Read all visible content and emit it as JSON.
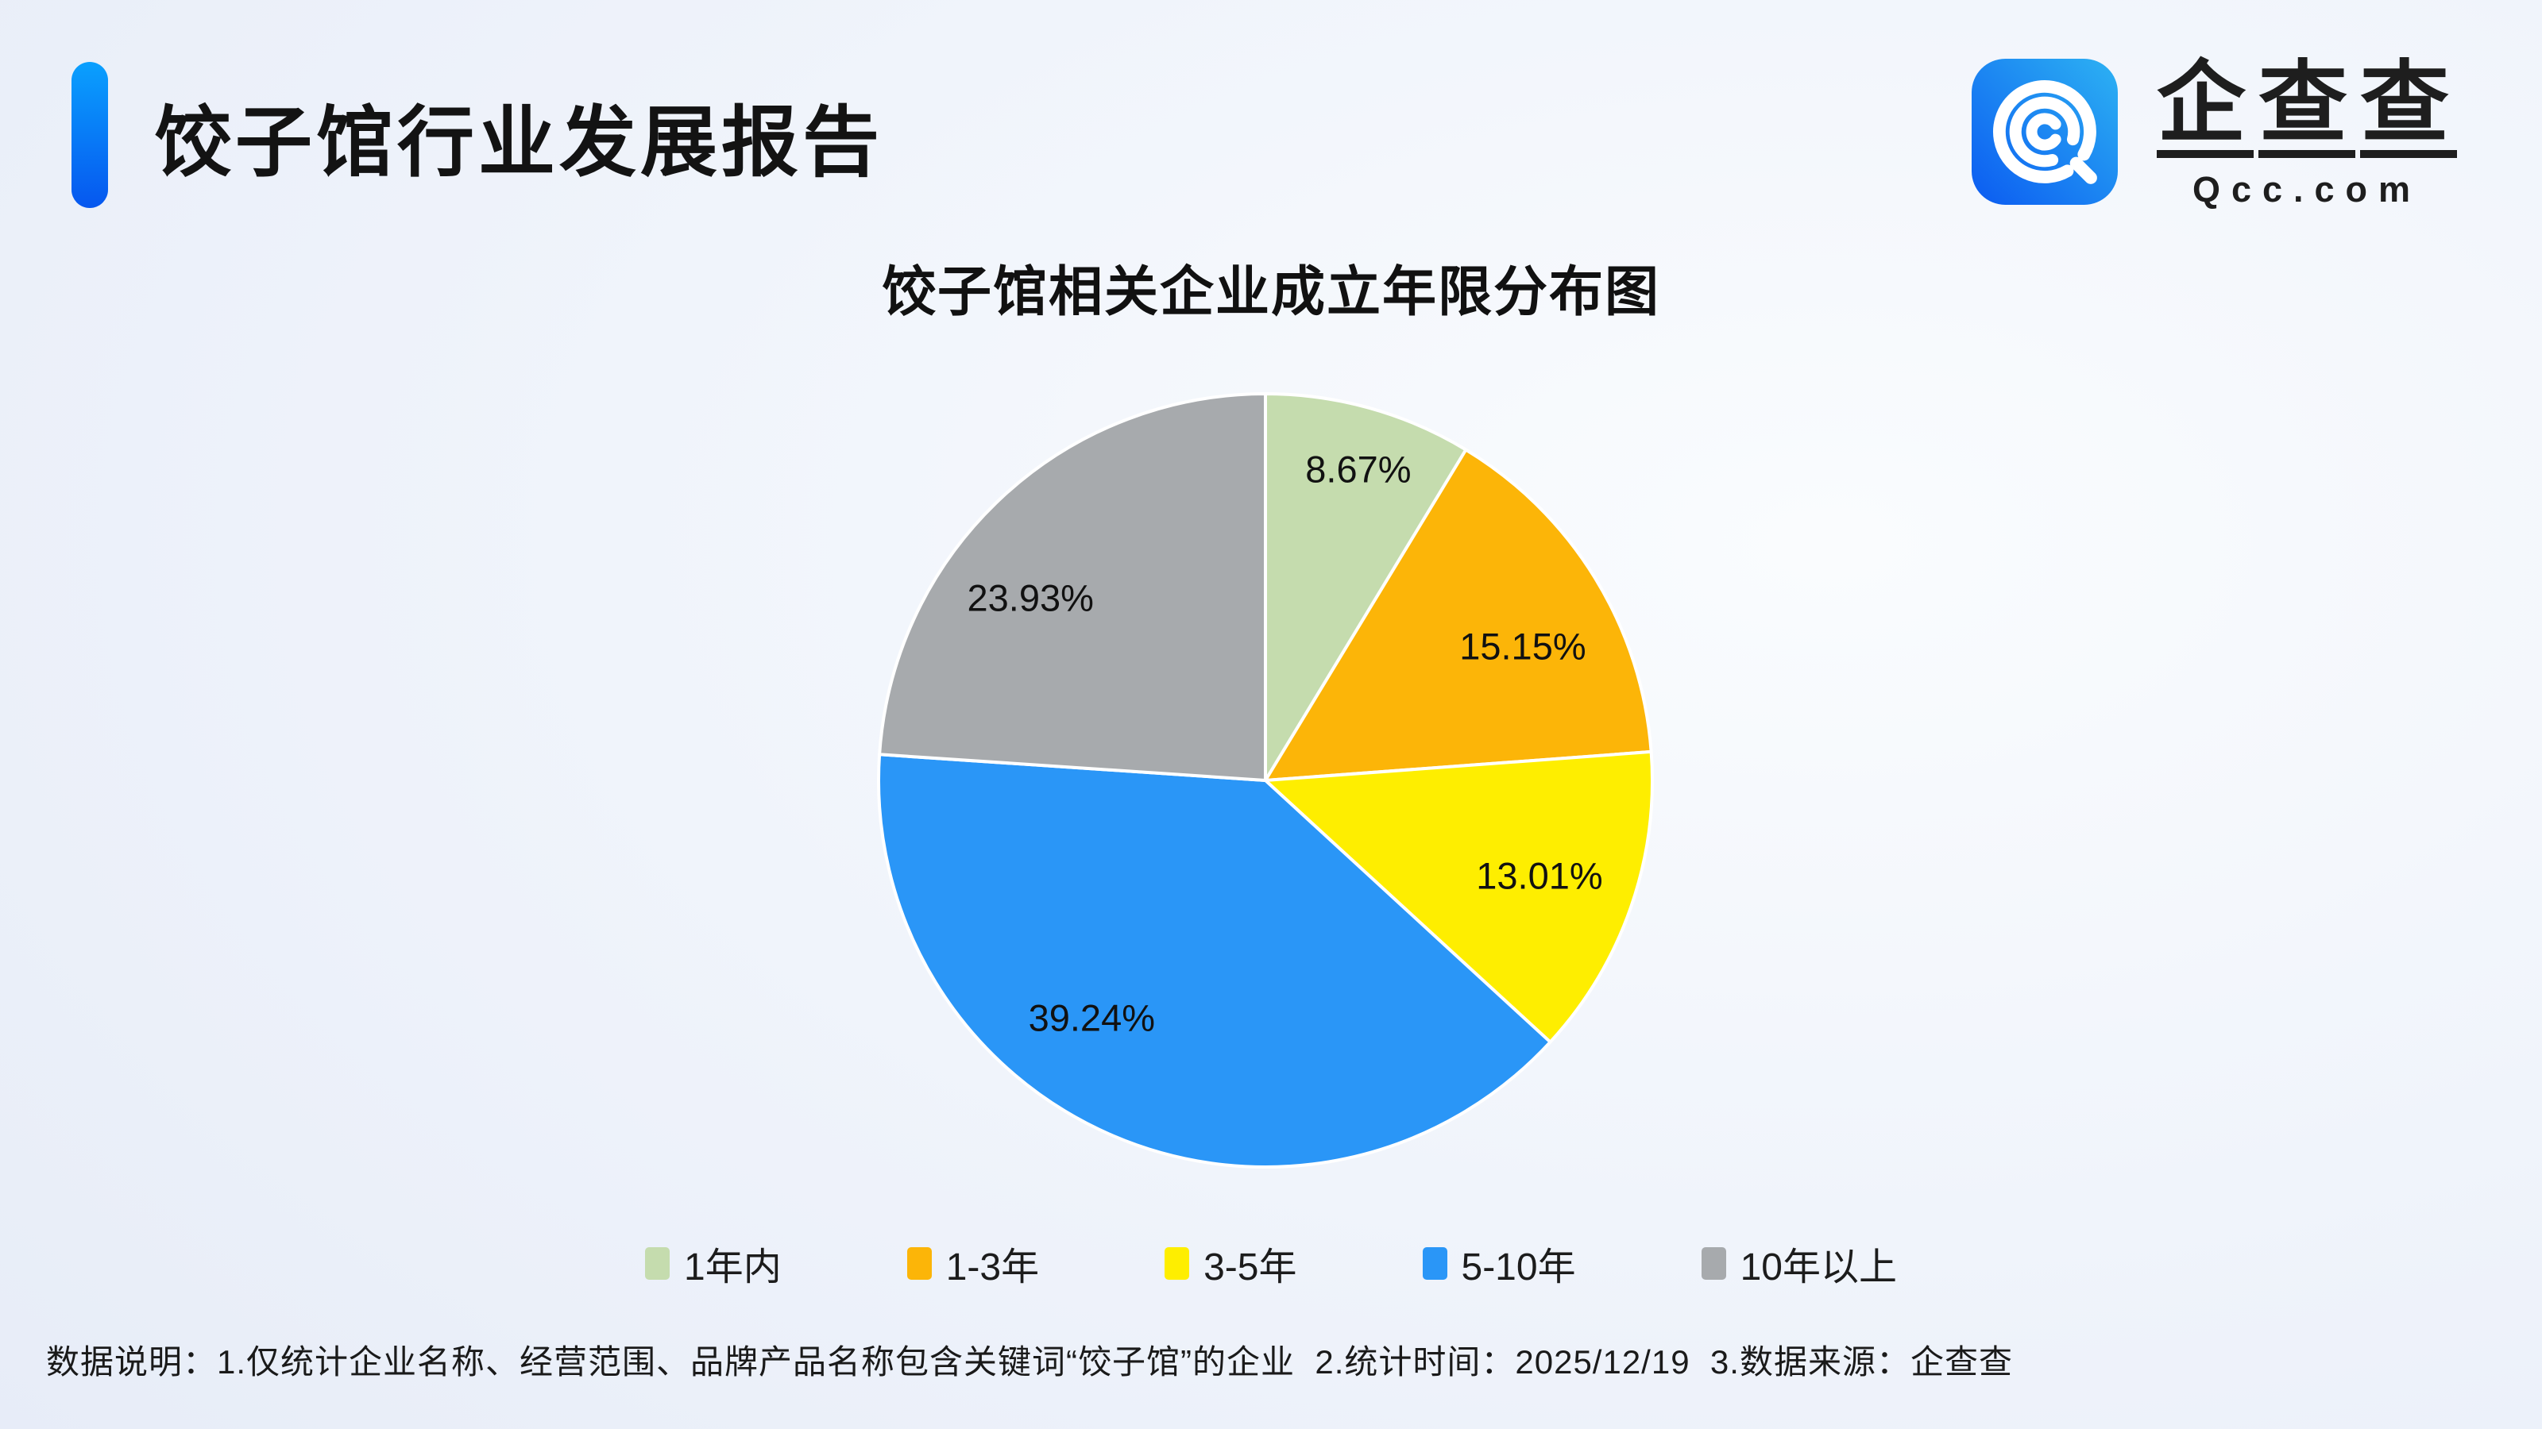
{
  "header": {
    "report_title": "饺子馆行业发展报告",
    "brand": {
      "name": "企查查",
      "domain": "Qcc.com"
    }
  },
  "chart_data": {
    "type": "pie",
    "title": "饺子馆相关企业成立年限分布图",
    "categories": [
      "1年内",
      "1-3年",
      "3-5年",
      "5-10年",
      "10年以上"
    ],
    "values": [
      8.67,
      15.15,
      13.01,
      39.24,
      23.93
    ],
    "value_labels": [
      "8.67%",
      "15.15%",
      "13.01%",
      "39.24%",
      "23.93%"
    ],
    "unit": "%",
    "colors": [
      "#c5dcae",
      "#fcb508",
      "#feee00",
      "#2a96f7",
      "#a7aaad"
    ],
    "start_angle_deg": 0,
    "clockwise": true,
    "legend_position": "bottom",
    "slice_border_color": "#ffffff"
  },
  "footer": {
    "note": "数据说明：1.仅统计企业名称、经营范围、品牌产品名称包含关键词“饺子馆”的企业  2.统计时间：2025/12/19  3.数据来源：企查查"
  }
}
